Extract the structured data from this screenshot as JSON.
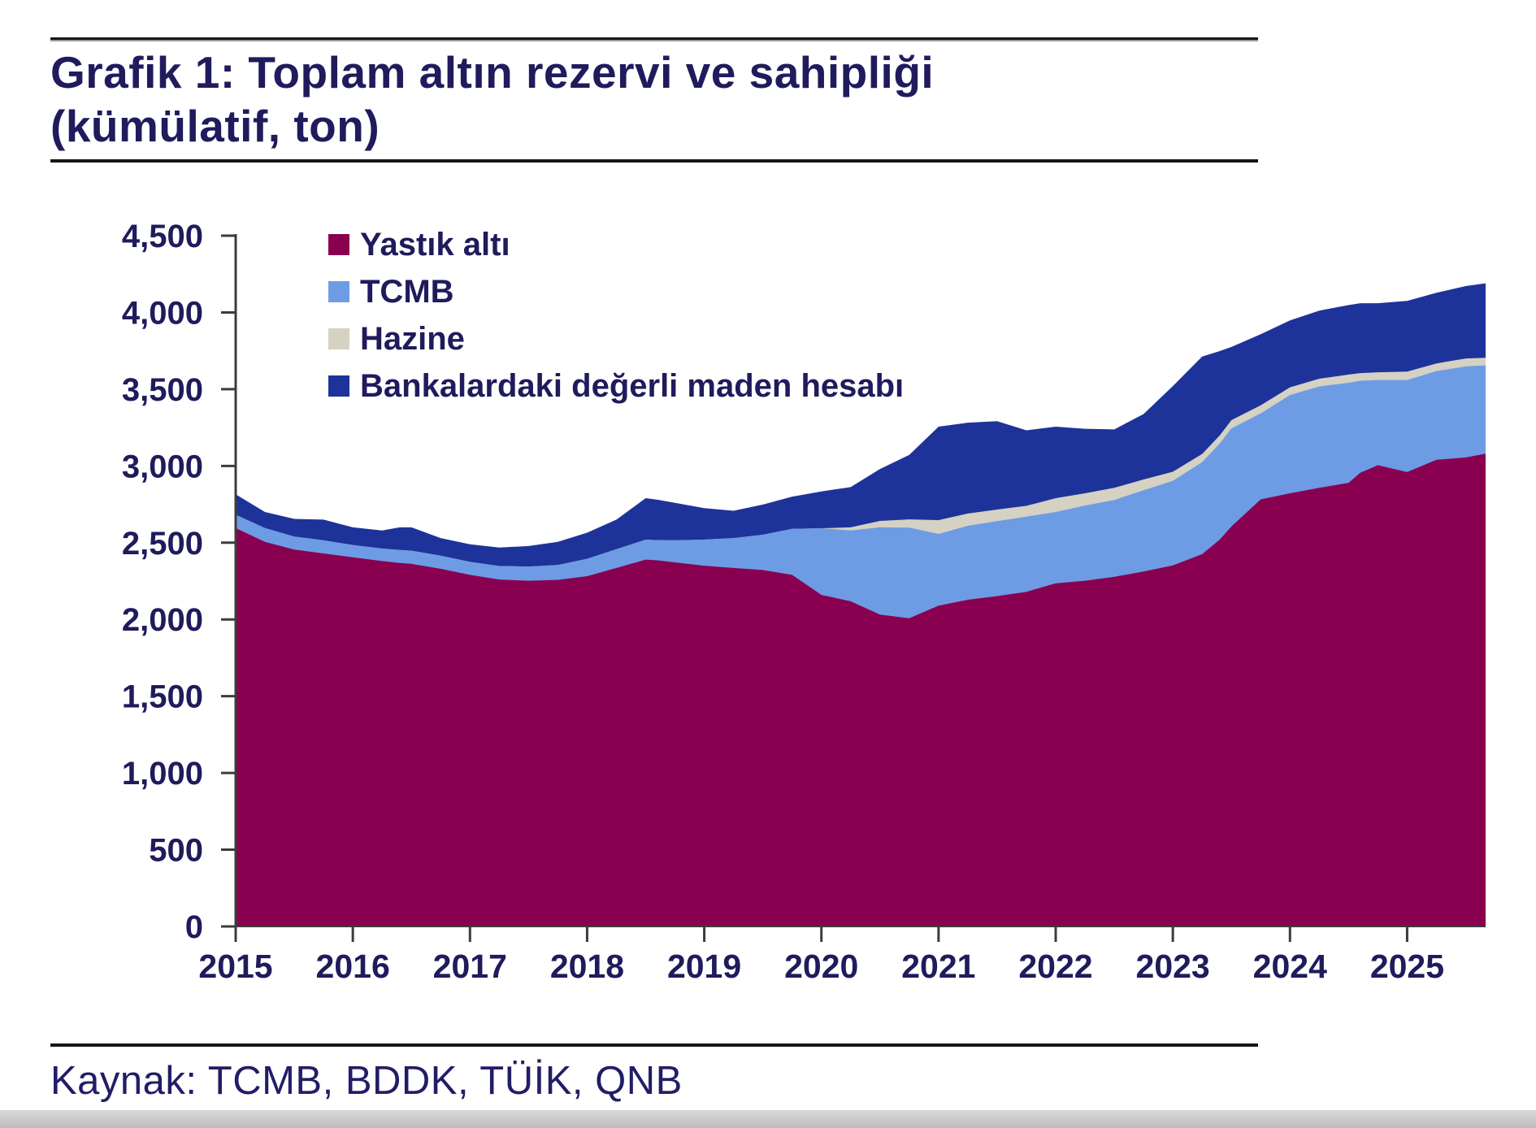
{
  "title": {
    "line1": "Grafik 1: Toplam altın rezervi ve sahipliği",
    "line2": "(kümülatif, ton)"
  },
  "source": "Kaynak: TCMB, BDDK, TÜİK, QNB",
  "colors": {
    "heading_text": "#1f1b5c",
    "axis": "#3c3c3c",
    "yastik_alti": "#8A0050",
    "tcmb": "#6D9CE4",
    "hazine": "#D5D1C3",
    "banka_hesabi": "#1E3399"
  },
  "chart_data": {
    "type": "area",
    "stacked": true,
    "title": "Grafik 1: Toplam altın rezervi ve sahipliği (kümülatif, ton)",
    "xlabel": "",
    "ylabel": "",
    "grid": false,
    "legend_position": "top-left",
    "xlim": [
      2015,
      2025.67
    ],
    "ylim": [
      0,
      4500
    ],
    "x_ticks": [
      2015,
      2016,
      2017,
      2018,
      2019,
      2020,
      2021,
      2022,
      2023,
      2024,
      2025
    ],
    "y_ticks": [
      0,
      500,
      1000,
      1500,
      2000,
      2500,
      3000,
      3500,
      4000,
      4500
    ],
    "y_tick_labels": [
      "0",
      "500",
      "1,000",
      "1,500",
      "2,000",
      "2,500",
      "3,000",
      "3,500",
      "4,000",
      "4,500"
    ],
    "x": [
      2015.0,
      2015.25,
      2015.5,
      2015.75,
      2016.0,
      2016.25,
      2016.4,
      2016.5,
      2016.75,
      2017.0,
      2017.25,
      2017.5,
      2017.75,
      2018.0,
      2018.25,
      2018.5,
      2018.6,
      2018.75,
      2019.0,
      2019.25,
      2019.5,
      2019.75,
      2020.0,
      2020.25,
      2020.5,
      2020.75,
      2021.0,
      2021.25,
      2021.5,
      2021.75,
      2022.0,
      2022.25,
      2022.5,
      2022.75,
      2023.0,
      2023.25,
      2023.4,
      2023.5,
      2023.75,
      2024.0,
      2024.25,
      2024.5,
      2024.6,
      2024.75,
      2025.0,
      2025.25,
      2025.5,
      2025.67
    ],
    "series": [
      {
        "name": "Yastık altı",
        "key": "yastik-alti",
        "color": "#8A0050",
        "values": [
          2595,
          2505,
          2455,
          2430,
          2405,
          2380,
          2368,
          2362,
          2330,
          2290,
          2260,
          2252,
          2258,
          2282,
          2335,
          2390,
          2385,
          2372,
          2350,
          2335,
          2322,
          2290,
          2160,
          2118,
          2032,
          2008,
          2090,
          2128,
          2152,
          2180,
          2235,
          2252,
          2278,
          2312,
          2352,
          2425,
          2520,
          2605,
          2782,
          2822,
          2858,
          2890,
          2955,
          3005,
          2960,
          3040,
          3055,
          3080
        ]
      },
      {
        "name": "TCMB",
        "key": "tcmb",
        "color": "#6D9CE4",
        "values": [
          87,
          90,
          85,
          85,
          80,
          82,
          85,
          86,
          85,
          85,
          88,
          93,
          97,
          113,
          123,
          130,
          132,
          143,
          170,
          195,
          230,
          300,
          434,
          462,
          568,
          590,
          467,
          482,
          488,
          490,
          465,
          490,
          500,
          530,
          550,
          600,
          625,
          640,
          560,
          640,
          660,
          652,
          600,
          555,
          600,
          578,
          593,
          575
        ]
      },
      {
        "name": "Hazine",
        "key": "hazine",
        "color": "#D5D1C3",
        "values": [
          0,
          0,
          0,
          0,
          0,
          0,
          0,
          0,
          0,
          0,
          0,
          0,
          0,
          0,
          0,
          0,
          0,
          0,
          0,
          0,
          0,
          0,
          0,
          20,
          42,
          54,
          90,
          80,
          76,
          70,
          90,
          80,
          80,
          70,
          60,
          53,
          53,
          53,
          53,
          50,
          50,
          53,
          50,
          50,
          55,
          50,
          52,
          50
        ]
      },
      {
        "name": "Bankalardaki değerli maden hesabı",
        "key": "banka-hesabi",
        "color": "#1E3399",
        "values": [
          133,
          105,
          115,
          135,
          115,
          118,
          147,
          152,
          115,
          115,
          120,
          133,
          150,
          170,
          192,
          270,
          263,
          245,
          205,
          178,
          196,
          210,
          240,
          262,
          338,
          420,
          609,
          592,
          576,
          492,
          466,
          420,
          380,
          426,
          558,
          634,
          550,
          477,
          463,
          436,
          444,
          453,
          455,
          450,
          460,
          460,
          472,
          485
        ]
      }
    ]
  }
}
